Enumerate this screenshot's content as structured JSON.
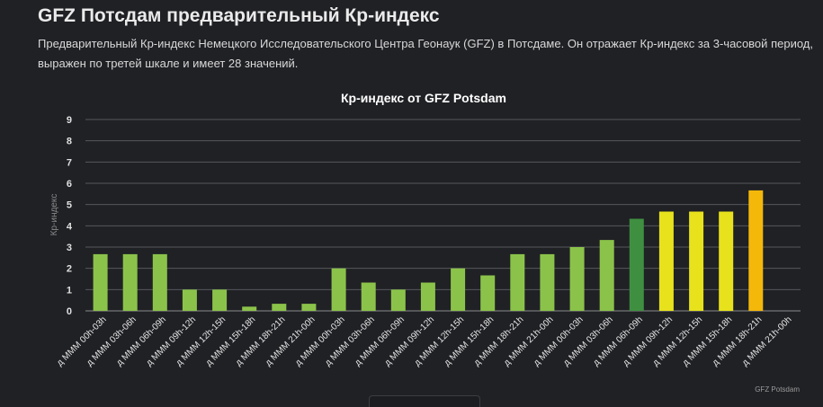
{
  "page": {
    "title": "GFZ Потсдам предварительный Кр-индекс",
    "description": "Предварительный Кр-индекс Немецкого Исследовательского Центра Геонаук (GFZ) в Потсдаме. Он отражает Кр-индекс за 3-часовой период, выражен по третей шкале и имеет 28 значений."
  },
  "chart_data": {
    "type": "bar",
    "title": "Кр-индекс от GFZ Potsdam",
    "ylabel": "Кр-индекс",
    "xlabel": "",
    "ylim": [
      0,
      9
    ],
    "yticks": [
      "0",
      "1",
      "2",
      "3",
      "4",
      "5",
      "6",
      "7",
      "8",
      "9"
    ],
    "grid": true,
    "credit": "GFZ Potsdam",
    "categories": [
      "д МММ 00h-03h",
      "д МММ 03h-06h",
      "д МММ 06h-09h",
      "д МММ 09h-12h",
      "д МММ 12h-15h",
      "д МММ 15h-18h",
      "д МММ 18h-21h",
      "д МММ 21h-00h",
      "д МММ 00h-03h",
      "д МММ 03h-06h",
      "д МММ 06h-09h",
      "д МММ 09h-12h",
      "д МММ 12h-15h",
      "д МММ 15h-18h",
      "д МММ 18h-21h",
      "д МММ 21h-00h",
      "д МММ 00h-03h",
      "д МММ 03h-06h",
      "д МММ 06h-09h",
      "д МММ 09h-12h",
      "д МММ 12h-15h",
      "д МММ 15h-18h",
      "д МММ 18h-21h",
      "д МММ 21h-00h"
    ],
    "values": [
      2.667,
      2.667,
      2.667,
      1.0,
      1.0,
      0.2,
      0.333,
      0.333,
      2.0,
      1.333,
      1.0,
      1.333,
      2.0,
      1.667,
      2.667,
      2.667,
      3.0,
      3.333,
      4.333,
      4.667,
      4.667,
      4.667,
      5.667,
      null
    ],
    "colors": [
      "#8bc34a",
      "#8bc34a",
      "#8bc34a",
      "#8bc34a",
      "#8bc34a",
      "#8bc34a",
      "#8bc34a",
      "#8bc34a",
      "#8bc34a",
      "#8bc34a",
      "#8bc34a",
      "#8bc34a",
      "#8bc34a",
      "#8bc34a",
      "#8bc34a",
      "#8bc34a",
      "#8bc34a",
      "#8bc34a",
      "#3f8f41",
      "#e7e21c",
      "#e7e21c",
      "#e7e21c",
      "#f4b80b",
      null
    ],
    "grid_color": "#56575c",
    "axis_color": "#8a8a8a"
  }
}
